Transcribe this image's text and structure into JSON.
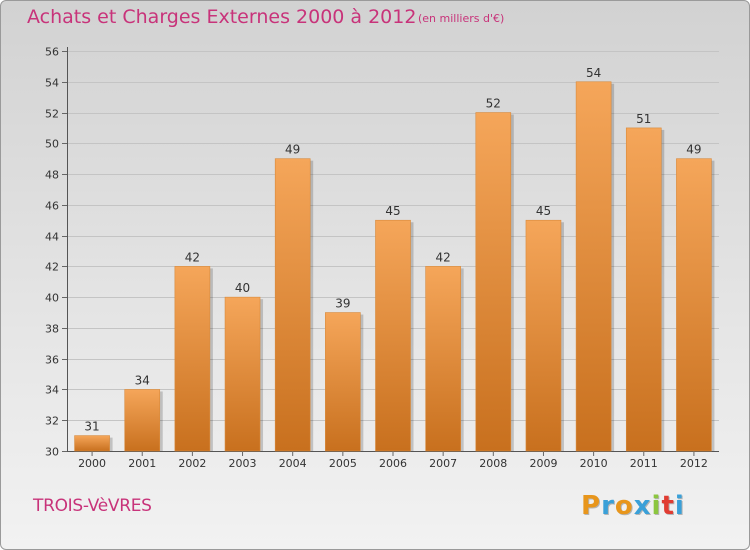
{
  "header": {
    "title": "Achats et Charges Externes 2000 à 2012",
    "unit": "(en milliers d'€)"
  },
  "footer": {
    "commune": "TROIS-VèVRES",
    "logo": "Proxiti",
    "logo_colors": [
      "#e8961c",
      "#3aa0d8",
      "#e8961c",
      "#3aa0d8",
      "#8cc63f",
      "#e03c32",
      "#3aa0d8"
    ]
  },
  "colors": {
    "bar_top": "#f5a65a",
    "bar_bottom": "#c8701e",
    "accent": "#c8337a"
  },
  "chart_data": {
    "type": "bar",
    "categories": [
      "2000",
      "2001",
      "2002",
      "2003",
      "2004",
      "2005",
      "2006",
      "2007",
      "2008",
      "2009",
      "2010",
      "2011",
      "2012"
    ],
    "values": [
      31,
      34,
      42,
      40,
      49,
      39,
      45,
      42,
      52,
      45,
      54,
      51,
      49
    ],
    "ylim": [
      30,
      56
    ],
    "yticks": [
      30,
      32,
      34,
      36,
      38,
      40,
      42,
      44,
      46,
      48,
      50,
      52,
      54,
      56
    ],
    "grid": true,
    "legend": "none"
  }
}
